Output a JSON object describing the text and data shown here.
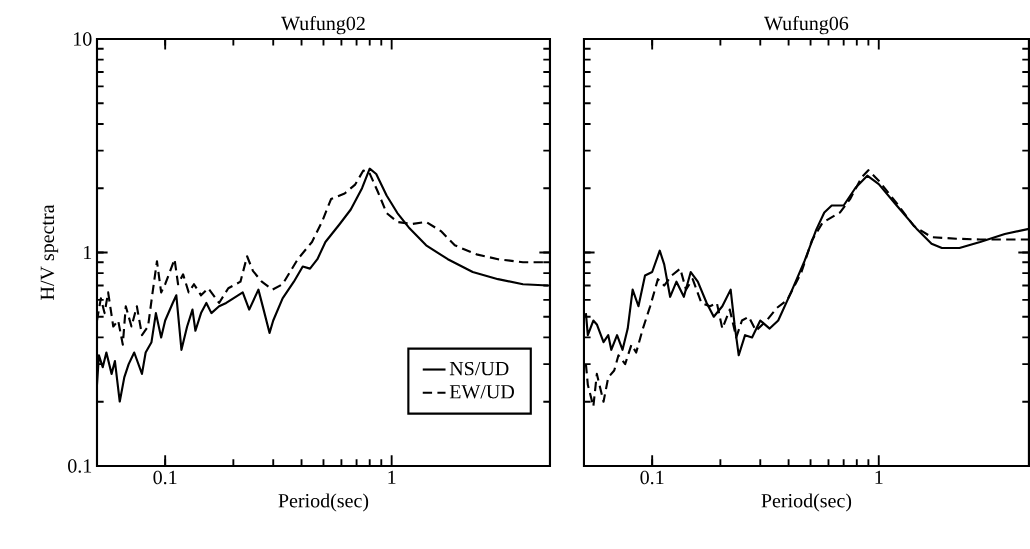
{
  "chart_data": [
    {
      "type": "line",
      "title": "Wufung02",
      "xlabel": "Period(sec)",
      "ylabel": "H/V spectra",
      "log": "xy",
      "xlim": [
        0.05,
        5
      ],
      "ylim": [
        0.1,
        10
      ],
      "xticks": [
        0.1,
        1
      ],
      "yticks": [
        0.1,
        1,
        10
      ],
      "legend": "bottom right",
      "grid": false,
      "series": [
        {
          "name": "NS/UD",
          "color": "#000000",
          "line_style": "solid",
          "x": [
            0.05,
            0.051,
            0.053,
            0.055,
            0.058,
            0.06,
            0.063,
            0.066,
            0.069,
            0.073,
            0.079,
            0.082,
            0.087,
            0.091,
            0.096,
            0.1,
            0.108,
            0.112,
            0.118,
            0.125,
            0.132,
            0.136,
            0.144,
            0.152,
            0.16,
            0.173,
            0.186,
            0.2,
            0.22,
            0.235,
            0.258,
            0.272,
            0.289,
            0.3,
            0.33,
            0.37,
            0.405,
            0.436,
            0.47,
            0.51,
            0.59,
            0.66,
            0.74,
            0.8,
            0.855,
            0.95,
            1.06,
            1.19,
            1.42,
            1.77,
            2.28,
            2.95,
            3.8,
            4.9
          ],
          "values": [
            0.24,
            0.33,
            0.29,
            0.34,
            0.27,
            0.31,
            0.2,
            0.26,
            0.3,
            0.34,
            0.27,
            0.34,
            0.38,
            0.52,
            0.4,
            0.48,
            0.58,
            0.63,
            0.35,
            0.45,
            0.54,
            0.43,
            0.52,
            0.58,
            0.52,
            0.56,
            0.58,
            0.61,
            0.65,
            0.54,
            0.67,
            0.54,
            0.42,
            0.48,
            0.61,
            0.73,
            0.86,
            0.84,
            0.93,
            1.12,
            1.36,
            1.59,
            2.0,
            2.47,
            2.33,
            1.85,
            1.53,
            1.31,
            1.08,
            0.93,
            0.81,
            0.75,
            0.71,
            0.7
          ]
        },
        {
          "name": "EW/UD",
          "color": "#000000",
          "line_style": "dashed",
          "x": [
            0.05,
            0.052,
            0.054,
            0.056,
            0.059,
            0.062,
            0.065,
            0.067,
            0.071,
            0.075,
            0.079,
            0.084,
            0.088,
            0.092,
            0.096,
            0.1,
            0.11,
            0.114,
            0.12,
            0.127,
            0.134,
            0.144,
            0.155,
            0.173,
            0.19,
            0.215,
            0.23,
            0.244,
            0.267,
            0.298,
            0.33,
            0.385,
            0.445,
            0.495,
            0.54,
            0.62,
            0.69,
            0.75,
            0.795,
            0.87,
            0.95,
            1.06,
            1.23,
            1.42,
            1.65,
            1.9,
            2.37,
            2.95,
            3.8,
            4.9
          ],
          "values": [
            0.48,
            0.61,
            0.52,
            0.65,
            0.45,
            0.48,
            0.37,
            0.56,
            0.45,
            0.56,
            0.41,
            0.45,
            0.65,
            0.91,
            0.65,
            0.71,
            0.93,
            0.71,
            0.79,
            0.65,
            0.71,
            0.63,
            0.68,
            0.58,
            0.68,
            0.73,
            0.96,
            0.82,
            0.73,
            0.67,
            0.71,
            0.93,
            1.12,
            1.41,
            1.78,
            1.89,
            2.08,
            2.42,
            2.38,
            1.92,
            1.53,
            1.39,
            1.36,
            1.39,
            1.26,
            1.08,
            0.98,
            0.93,
            0.9,
            0.9
          ]
        }
      ]
    },
    {
      "type": "line",
      "title": "Wufung06",
      "xlabel": "Period(sec)",
      "log": "xy",
      "xlim": [
        0.05,
        4.6
      ],
      "ylim": [
        0.1,
        10
      ],
      "xticks": [
        0.1,
        1
      ],
      "yticks": [
        0.1,
        1,
        10
      ],
      "tick_labels": "x",
      "grid": false,
      "series": [
        {
          "color": "#000000",
          "line_style": "solid",
          "x": [
            0.051,
            0.052,
            0.055,
            0.057,
            0.061,
            0.064,
            0.066,
            0.07,
            0.074,
            0.078,
            0.082,
            0.087,
            0.093,
            0.1,
            0.108,
            0.113,
            0.12,
            0.128,
            0.138,
            0.148,
            0.159,
            0.174,
            0.187,
            0.204,
            0.222,
            0.231,
            0.241,
            0.257,
            0.276,
            0.3,
            0.33,
            0.36,
            0.41,
            0.47,
            0.53,
            0.575,
            0.62,
            0.7,
            0.79,
            0.89,
            1.0,
            1.2,
            1.48,
            1.71,
            1.9,
            2.27,
            2.8,
            3.6,
            4.6
          ],
          "values": [
            0.52,
            0.41,
            0.48,
            0.46,
            0.38,
            0.41,
            0.35,
            0.41,
            0.35,
            0.44,
            0.67,
            0.56,
            0.78,
            0.81,
            1.02,
            0.88,
            0.62,
            0.73,
            0.62,
            0.81,
            0.73,
            0.58,
            0.5,
            0.56,
            0.67,
            0.46,
            0.33,
            0.41,
            0.4,
            0.48,
            0.44,
            0.48,
            0.65,
            0.91,
            1.28,
            1.54,
            1.66,
            1.66,
            2.01,
            2.29,
            2.09,
            1.66,
            1.28,
            1.1,
            1.05,
            1.05,
            1.12,
            1.22,
            1.29
          ]
        },
        {
          "color": "#000000",
          "line_style": "dashed",
          "x": [
            0.051,
            0.052,
            0.055,
            0.057,
            0.061,
            0.064,
            0.068,
            0.071,
            0.076,
            0.081,
            0.085,
            0.091,
            0.098,
            0.106,
            0.113,
            0.122,
            0.133,
            0.141,
            0.151,
            0.165,
            0.18,
            0.193,
            0.204,
            0.22,
            0.235,
            0.249,
            0.267,
            0.287,
            0.32,
            0.355,
            0.395,
            0.456,
            0.507,
            0.565,
            0.675,
            0.75,
            0.84,
            0.9,
            1.0,
            1.2,
            1.43,
            1.71,
            2.2,
            2.8,
            3.6,
            4.6
          ],
          "values": [
            0.3,
            0.24,
            0.19,
            0.27,
            0.2,
            0.26,
            0.28,
            0.33,
            0.3,
            0.37,
            0.34,
            0.44,
            0.56,
            0.75,
            0.7,
            0.78,
            0.84,
            0.67,
            0.75,
            0.58,
            0.56,
            0.58,
            0.44,
            0.54,
            0.4,
            0.48,
            0.5,
            0.43,
            0.48,
            0.55,
            0.6,
            0.81,
            1.14,
            1.38,
            1.54,
            1.79,
            2.25,
            2.43,
            2.17,
            1.7,
            1.33,
            1.18,
            1.16,
            1.15,
            1.15,
            1.15
          ]
        }
      ]
    }
  ]
}
